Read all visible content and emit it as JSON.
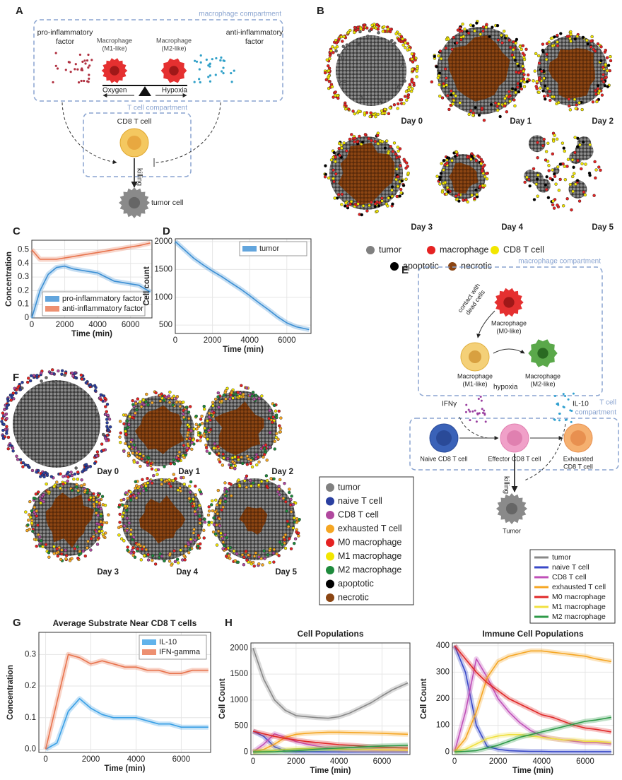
{
  "chart_data": [
    {
      "type": "line",
      "panel": "C",
      "xlabel": "Time (min)",
      "ylabel": "Concentration",
      "x": [
        0,
        500,
        1000,
        1500,
        2000,
        2500,
        3000,
        3500,
        4000,
        4500,
        5000,
        5500,
        6000,
        6500,
        7200
      ],
      "xlim": [
        0,
        7300
      ],
      "xticks": [
        0,
        2000,
        4000,
        6000
      ],
      "ylim": [
        0,
        0.57
      ],
      "yticks": [
        0,
        0.1,
        0.2,
        0.3,
        0.4,
        0.5
      ],
      "grid": true,
      "legend": "lower left",
      "series": [
        {
          "name": "pro-inflammatory factor",
          "color": "#3b8fd4",
          "values": [
            0,
            0.2,
            0.32,
            0.37,
            0.38,
            0.36,
            0.35,
            0.34,
            0.33,
            0.3,
            0.27,
            0.26,
            0.25,
            0.24,
            0.19
          ]
        },
        {
          "name": "anti-inflammatory factor",
          "color": "#e8744e",
          "values": [
            0.5,
            0.43,
            0.43,
            0.43,
            0.44,
            0.45,
            0.46,
            0.47,
            0.48,
            0.49,
            0.5,
            0.51,
            0.52,
            0.53,
            0.55
          ]
        }
      ]
    },
    {
      "type": "line",
      "panel": "D",
      "xlabel": "Time (min)",
      "ylabel": "Cell count",
      "x": [
        0,
        500,
        1000,
        1500,
        2000,
        2500,
        3000,
        3500,
        4000,
        4500,
        5000,
        5500,
        6000,
        6500,
        7200
      ],
      "xlim": [
        0,
        7300
      ],
      "xticks": [
        0,
        2000,
        4000,
        6000
      ],
      "ylim": [
        350,
        2050
      ],
      "yticks": [
        500,
        1000,
        1500,
        2000
      ],
      "grid": true,
      "legend": "upper right",
      "series": [
        {
          "name": "tumor",
          "color": "#3b8fd4",
          "values": [
            2000,
            1850,
            1700,
            1580,
            1470,
            1370,
            1260,
            1150,
            1030,
            900,
            780,
            650,
            540,
            470,
            420
          ]
        }
      ]
    },
    {
      "type": "line",
      "panel": "G",
      "title": "Average Substrate Near CD8 T cells",
      "xlabel": "Time (min)",
      "ylabel": "Concentration",
      "x": [
        0,
        500,
        1000,
        1500,
        2000,
        2500,
        3000,
        3500,
        4000,
        4500,
        5000,
        5500,
        6000,
        6500,
        7200
      ],
      "xlim": [
        -300,
        7300
      ],
      "xticks": [
        0,
        2000,
        4000,
        6000
      ],
      "ylim": [
        -0.01,
        0.37
      ],
      "yticks": [
        {
          "value": 0,
          "label": "0.0"
        },
        0.1,
        0.2,
        0.3
      ],
      "grid": true,
      "legend": "upper right",
      "series": [
        {
          "name": "IL-10",
          "color": "#3aa0e6",
          "values": [
            0,
            0.02,
            0.12,
            0.16,
            0.13,
            0.11,
            0.1,
            0.1,
            0.1,
            0.09,
            0.08,
            0.08,
            0.07,
            0.07,
            0.07
          ]
        },
        {
          "name": "IFN-gamma",
          "color": "#e8744e",
          "values": [
            0,
            0.15,
            0.3,
            0.29,
            0.27,
            0.28,
            0.27,
            0.26,
            0.26,
            0.25,
            0.25,
            0.24,
            0.24,
            0.25,
            0.25
          ]
        }
      ]
    },
    {
      "type": "line",
      "panel": "H",
      "title": "Cell Populations",
      "xlabel": "Time (min)",
      "ylabel": "Cell Count",
      "x": [
        0,
        500,
        1000,
        1500,
        2000,
        2500,
        3000,
        3500,
        4000,
        4500,
        5000,
        5500,
        6000,
        6500,
        7200
      ],
      "xlim": [
        -100,
        7300
      ],
      "xticks": [
        0,
        2000,
        4000,
        6000
      ],
      "ylim": [
        -50,
        2100
      ],
      "yticks": [
        0,
        500,
        1000,
        1500,
        2000
      ],
      "grid": true,
      "series": [
        {
          "name": "tumor",
          "color": "#888888",
          "values": [
            2000,
            1400,
            1000,
            800,
            700,
            680,
            660,
            650,
            680,
            750,
            850,
            950,
            1080,
            1200,
            1330
          ]
        },
        {
          "name": "naive T cell",
          "color": "#3949c8",
          "values": [
            400,
            300,
            100,
            20,
            10,
            5,
            3,
            2,
            2,
            1,
            1,
            1,
            1,
            1,
            1
          ]
        },
        {
          "name": "CD8 T cell",
          "color": "#c050b8",
          "values": [
            0,
            150,
            350,
            280,
            200,
            150,
            110,
            80,
            60,
            50,
            45,
            40,
            35,
            35,
            30
          ]
        },
        {
          "name": "exhausted T cell",
          "color": "#f5a623",
          "values": [
            0,
            50,
            150,
            280,
            340,
            360,
            370,
            380,
            380,
            375,
            370,
            365,
            360,
            350,
            340
          ]
        },
        {
          "name": "M0 macrophage",
          "color": "#e02828",
          "values": [
            400,
            350,
            300,
            260,
            230,
            200,
            180,
            160,
            140,
            130,
            115,
            100,
            90,
            85,
            75
          ]
        },
        {
          "name": "M1 macrophage",
          "color": "#f0e040",
          "values": [
            0,
            10,
            30,
            50,
            60,
            65,
            65,
            60,
            55,
            50,
            45,
            45,
            40,
            40,
            35
          ]
        },
        {
          "name": "M2 macrophage",
          "color": "#2e9a48",
          "values": [
            0,
            2,
            5,
            15,
            25,
            40,
            55,
            65,
            75,
            85,
            95,
            105,
            115,
            120,
            130
          ]
        }
      ]
    },
    {
      "type": "line",
      "panel": "H",
      "title": "Immune Cell Populations",
      "xlabel": "Time (min)",
      "ylabel": "Cell Count",
      "x": [
        0,
        500,
        1000,
        1500,
        2000,
        2500,
        3000,
        3500,
        4000,
        4500,
        5000,
        5500,
        6000,
        6500,
        7200
      ],
      "xlim": [
        -100,
        7300
      ],
      "xticks": [
        0,
        2000,
        4000,
        6000
      ],
      "ylim": [
        -10,
        410
      ],
      "yticks": [
        0,
        100,
        200,
        300,
        400
      ],
      "grid": true,
      "series": [
        {
          "name": "naive T cell",
          "color": "#3949c8",
          "values": [
            400,
            300,
            100,
            20,
            10,
            5,
            3,
            2,
            2,
            1,
            1,
            1,
            1,
            1,
            1
          ]
        },
        {
          "name": "CD8 T cell",
          "color": "#c050b8",
          "values": [
            0,
            150,
            350,
            280,
            200,
            150,
            110,
            80,
            60,
            50,
            45,
            40,
            35,
            35,
            30
          ]
        },
        {
          "name": "exhausted T cell",
          "color": "#f5a623",
          "values": [
            0,
            50,
            150,
            280,
            340,
            360,
            370,
            380,
            380,
            375,
            370,
            365,
            360,
            350,
            340
          ]
        },
        {
          "name": "M0 macrophage",
          "color": "#e02828",
          "values": [
            400,
            350,
            300,
            260,
            230,
            200,
            180,
            160,
            140,
            130,
            115,
            100,
            90,
            85,
            75
          ]
        },
        {
          "name": "M1 macrophage",
          "color": "#f0e040",
          "values": [
            0,
            10,
            30,
            50,
            60,
            65,
            65,
            60,
            55,
            50,
            45,
            45,
            40,
            40,
            35
          ]
        },
        {
          "name": "M2 macrophage",
          "color": "#2e9a48",
          "values": [
            0,
            2,
            5,
            15,
            25,
            40,
            55,
            65,
            75,
            85,
            95,
            105,
            115,
            120,
            130
          ]
        }
      ]
    }
  ],
  "panels": {
    "A": {
      "letter": "A",
      "macrophage_compartment": "macrophage compartment",
      "pro_factor": [
        "pro-inflammatory",
        "factor"
      ],
      "m1": [
        "Macrophage",
        "(M1-like)"
      ],
      "m2": [
        "Macrophage",
        "(M2-like)"
      ],
      "anti_factor": [
        "anti-inflammatory",
        "factor"
      ],
      "oxygen": "Oxygen",
      "hypoxia": "Hypoxia",
      "t_compartment": "T cell compartment",
      "cd8": "CD8 T cell",
      "killing": "killing",
      "tumor": "tumor cell"
    },
    "B": {
      "letter": "B",
      "days": [
        "Day 0",
        "Day 1",
        "Day 2",
        "Day 3",
        "Day 4",
        "Day 5"
      ],
      "legend": [
        {
          "name": "tumor",
          "color": "#808080"
        },
        {
          "name": "macrophage",
          "color": "#e52222"
        },
        {
          "name": "CD8 T cell",
          "color": "#f2e600"
        },
        {
          "name": "apoptotic",
          "color": "#000000"
        },
        {
          "name": "necrotic",
          "color": "#8b4513"
        }
      ]
    },
    "C": {
      "letter": "C"
    },
    "D": {
      "letter": "D"
    },
    "E": {
      "letter": "E",
      "macrophage_compartment": "macrophage compartment",
      "contact": [
        "contact with",
        "dead cells"
      ],
      "m0": [
        "Macrophage",
        "(M0-like)"
      ],
      "m1": [
        "Macrophage",
        "(M1-like)"
      ],
      "m2": [
        "Macrophage",
        "(M2-like)"
      ],
      "hypoxia": "hypoxia",
      "ifn": "IFNγ",
      "il10": "IL-10",
      "t_compartment": [
        "T cell",
        "compartment"
      ],
      "naive": "Naive CD8 T cell",
      "effector": "Effector CD8 T cell",
      "exhausted": [
        "Exhausted",
        "CD8 T cell"
      ],
      "killing": "killing",
      "tumor": "Tumor"
    },
    "F": {
      "letter": "F",
      "days": [
        "Day 0",
        "Day 1",
        "Day 2",
        "Day 3",
        "Day 4",
        "Day 5"
      ],
      "legend": [
        {
          "name": "tumor",
          "color": "#808080"
        },
        {
          "name": "naive T cell",
          "color": "#2a3fa0"
        },
        {
          "name": "CD8 T cell",
          "color": "#b0489e"
        },
        {
          "name": "exhausted T cell",
          "color": "#f5a623"
        },
        {
          "name": "M0 macrophage",
          "color": "#e52222"
        },
        {
          "name": "M1 macrophage",
          "color": "#f2e600"
        },
        {
          "name": "M2 macrophage",
          "color": "#1e8a3c"
        },
        {
          "name": "apoptotic",
          "color": "#000000"
        },
        {
          "name": "necrotic",
          "color": "#8b4513"
        }
      ]
    },
    "G": {
      "letter": "G"
    },
    "H": {
      "letter": "H"
    }
  }
}
